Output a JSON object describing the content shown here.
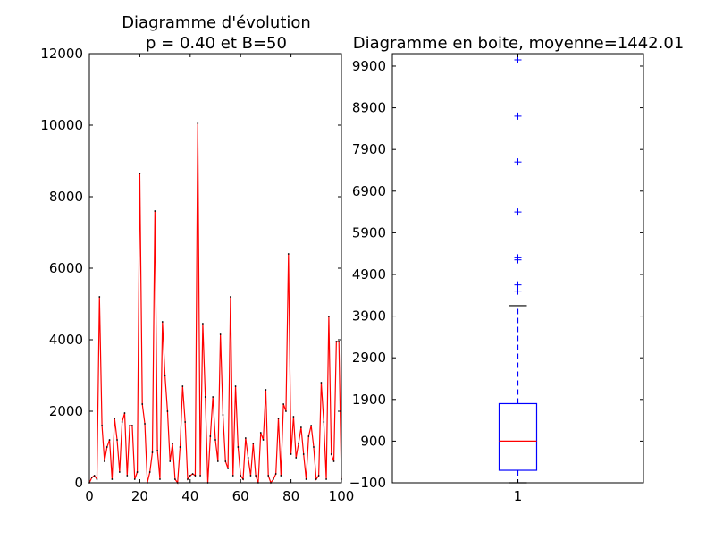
{
  "chart_data": [
    {
      "type": "line",
      "title": "Diagramme d'évolution\np = 0.40 et B=50",
      "title_lines": [
        "Diagramme d'évolution",
        "p = 0.40 et B=50"
      ],
      "xlabel": "",
      "ylabel": "",
      "xlim": [
        0,
        100
      ],
      "ylim": [
        0,
        12000
      ],
      "x_ticks": [
        0,
        20,
        40,
        60,
        80,
        100
      ],
      "y_ticks": [
        0,
        2000,
        4000,
        6000,
        8000,
        10000,
        12000
      ],
      "grid": false,
      "color": "#ff0000",
      "series": [
        {
          "x": [
            0,
            1,
            2,
            3,
            4,
            5,
            6,
            7,
            8,
            9,
            10,
            11,
            12,
            13,
            14,
            15,
            16,
            17,
            18,
            19,
            20,
            21,
            22,
            23,
            24,
            25,
            26,
            27,
            28,
            29,
            30,
            31,
            32,
            33,
            34,
            35,
            36,
            37,
            38,
            39,
            40,
            41,
            42,
            43,
            44,
            45,
            46,
            47,
            48,
            49,
            50,
            51,
            52,
            53,
            54,
            55,
            56,
            57,
            58,
            59,
            60,
            61,
            62,
            63,
            64,
            65,
            66,
            67,
            68,
            69,
            70,
            71,
            72,
            73,
            74,
            75,
            76,
            77,
            78,
            79,
            80,
            81,
            82,
            83,
            84,
            85,
            86,
            87,
            88,
            89,
            90,
            91,
            92,
            93,
            94,
            95,
            96,
            97,
            98,
            99,
            100
          ],
          "values": [
            0,
            150,
            200,
            100,
            5200,
            1600,
            600,
            1000,
            1200,
            100,
            1800,
            1200,
            300,
            1700,
            1950,
            200,
            1600,
            1600,
            100,
            300,
            8650,
            2200,
            1650,
            0,
            300,
            850,
            7600,
            900,
            100,
            4500,
            3000,
            2000,
            600,
            1100,
            100,
            0,
            1000,
            2700,
            1700,
            100,
            200,
            250,
            200,
            10050,
            200,
            4450,
            2400,
            0,
            1300,
            2400,
            1200,
            600,
            4150,
            1900,
            600,
            400,
            5200,
            200,
            2700,
            1000,
            200,
            100,
            1250,
            700,
            200,
            1100,
            200,
            0,
            1400,
            1200,
            2600,
            200,
            0,
            100,
            250,
            1800,
            200,
            2200,
            2000,
            6400,
            800,
            1850,
            700,
            1100,
            1550,
            800,
            100,
            1300,
            1600,
            1000,
            100,
            200,
            2800,
            1700,
            100,
            4650,
            800,
            600,
            3950,
            3950,
            100
          ]
        }
      ]
    },
    {
      "type": "box",
      "title": "Diagramme en boite, moyenne=1442.01",
      "xlabel": "",
      "ylabel": "",
      "ylim": [
        -100,
        10200
      ],
      "y_ticks": [
        -100,
        900,
        1900,
        2900,
        3900,
        4900,
        5900,
        6900,
        7900,
        8900,
        9900
      ],
      "categories": [
        "1"
      ],
      "box_color": "#0000ff",
      "median_color": "#ff0000",
      "box": {
        "whisker_low": -100,
        "q1": 200,
        "median": 900,
        "q3": 1800,
        "whisker_high": 4150
      },
      "outliers": [
        4500,
        4650,
        5250,
        5300,
        6400,
        7600,
        8700,
        10050
      ]
    }
  ]
}
